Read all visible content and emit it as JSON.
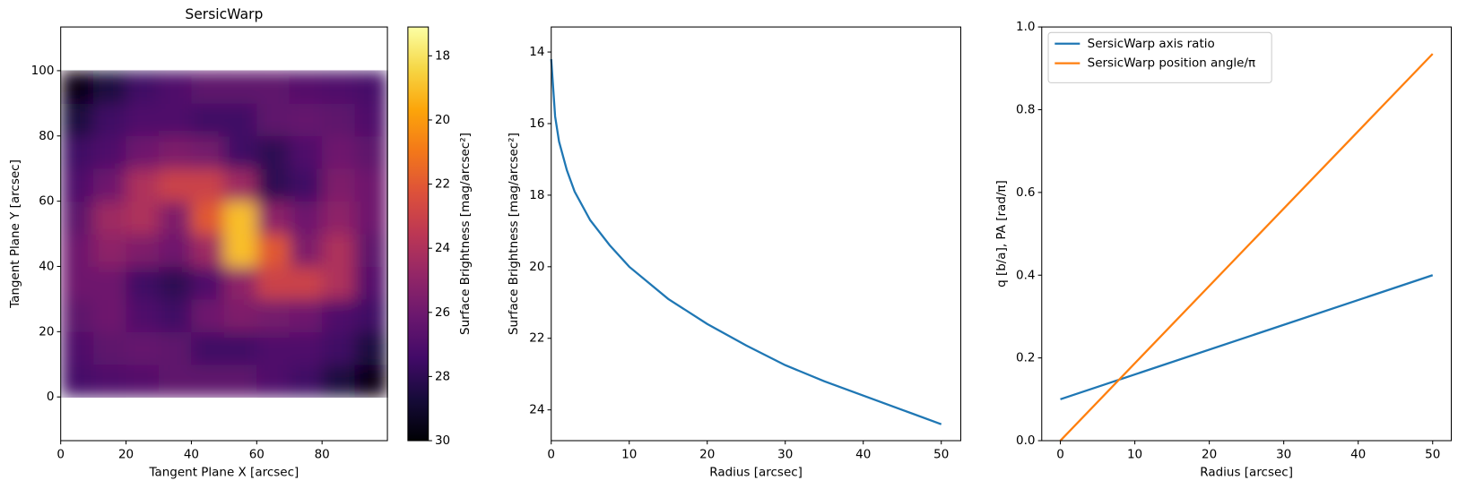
{
  "chart_data": [
    {
      "type": "heatmap",
      "title": "SersicWarp",
      "x_label": "Tangent Plane X [arcsec]",
      "y_label": "Tangent Plane Y [arcsec]",
      "x": [
        5,
        15,
        25,
        35,
        45,
        55,
        65,
        75,
        85,
        95
      ],
      "y": [
        5,
        15,
        25,
        35,
        45,
        55,
        65,
        75,
        85,
        95
      ],
      "values": [
        [
          27.3,
          27,
          26.8,
          26.5,
          26.5,
          26.5,
          27,
          27.5,
          28.5,
          29.5
        ],
        [
          27,
          26.5,
          26.3,
          26.5,
          27.5,
          27.5,
          27,
          27,
          27.5,
          28.5
        ],
        [
          26.5,
          26,
          27,
          27.5,
          26,
          25.5,
          25.8,
          26,
          27,
          27.5
        ],
        [
          26,
          26,
          27.5,
          28,
          27,
          25,
          23,
          23,
          24,
          26.8
        ],
        [
          26,
          25,
          25.5,
          26,
          24.5,
          19,
          22,
          25.5,
          24,
          26.5
        ],
        [
          26.5,
          24.5,
          24,
          25.5,
          22,
          19,
          25,
          26,
          25,
          26
        ],
        [
          27,
          26,
          24,
          23,
          23,
          24.5,
          28,
          27.5,
          25.5,
          26
        ],
        [
          27.5,
          27,
          26,
          25.5,
          25.8,
          27.5,
          28,
          27,
          26,
          26.5
        ],
        [
          28.5,
          27.5,
          27,
          27,
          27.5,
          27.5,
          26.5,
          26.3,
          26.5,
          27
        ],
        [
          29.5,
          28.5,
          27.5,
          27,
          26.5,
          26.5,
          26.5,
          26.8,
          27,
          27.3
        ]
      ],
      "colormap": "inferno",
      "xlim": [
        0,
        100
      ],
      "xticks": [
        0,
        20,
        40,
        60,
        80
      ],
      "ylim": [
        -13.4,
        113.4
      ],
      "yticks": [
        0,
        20,
        40,
        60,
        80,
        100
      ],
      "colorbar": {
        "label": "Surface Brightness [mag/arcsec²]",
        "lim": [
          30,
          17.1
        ],
        "ticks": [
          18,
          20,
          22,
          24,
          26,
          28,
          30
        ]
      }
    },
    {
      "type": "line",
      "x_label": "Radius [arcsec]",
      "y_label": "Surface Brightness [mag/arcsec²]",
      "x": [
        0,
        0.5,
        1,
        2,
        3,
        5,
        7.5,
        10,
        15,
        20,
        25,
        30,
        35,
        40,
        45,
        50
      ],
      "values": [
        14.2,
        15.8,
        16.5,
        17.3,
        17.9,
        18.7,
        19.4,
        20.0,
        20.9,
        21.6,
        22.2,
        22.75,
        23.2,
        23.6,
        24.0,
        24.4
      ],
      "color": "#1f77b4",
      "xlim": [
        0,
        52.5
      ],
      "xticks": [
        0,
        10,
        20,
        30,
        40,
        50
      ],
      "ylim": [
        24.86,
        13.3
      ],
      "yticks": [
        14,
        16,
        18,
        20,
        22,
        24
      ]
    },
    {
      "type": "line",
      "x_label": "Radius [arcsec]",
      "y_label": "q [b/a], PA [rad/π]",
      "x": [
        0,
        50
      ],
      "series": [
        {
          "name": "SersicWarp axis ratio",
          "color": "#1f77b4",
          "values": [
            0.1,
            0.4
          ]
        },
        {
          "name": "SersicWarp position angle/π",
          "color": "#ff7f0e",
          "values": [
            0,
            0.935
          ]
        }
      ],
      "legend": "upper left",
      "xlim": [
        -2.5,
        52.5
      ],
      "xticks": [
        0,
        10,
        20,
        30,
        40,
        50
      ],
      "ylim": [
        0,
        1
      ],
      "yticks": [
        {
          "value": 0,
          "label": "0.0"
        },
        0.2,
        0.4,
        0.6,
        0.8,
        {
          "value": 1,
          "label": "1.0"
        }
      ]
    }
  ]
}
